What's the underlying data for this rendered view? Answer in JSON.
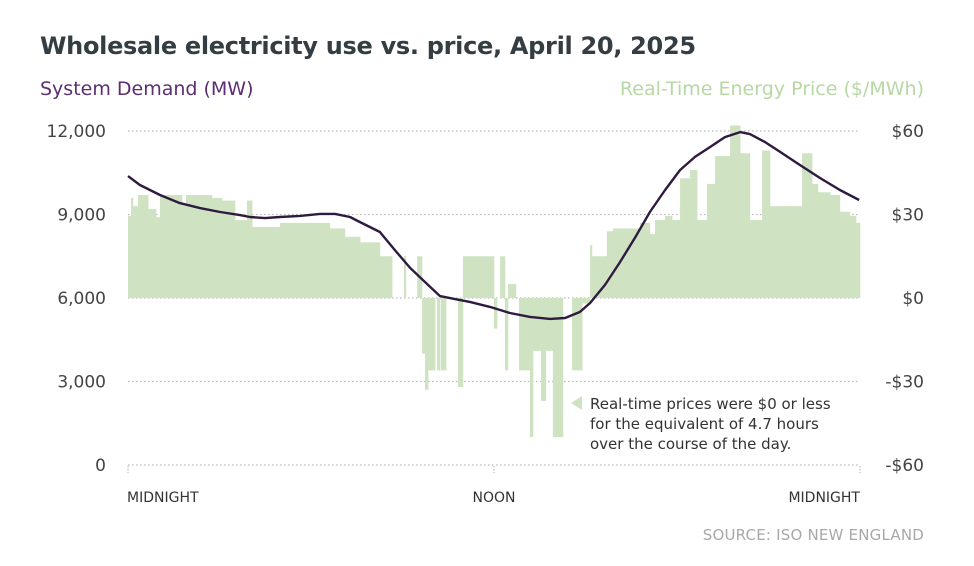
{
  "chart_data": {
    "type": "bar+line",
    "title": "Wholesale electricity use vs. price, April 20, 2025",
    "left_axis": {
      "label": "System Demand (MW)",
      "ticks": [
        "0",
        "3,000",
        "6,000",
        "9,000",
        "12,000"
      ],
      "range": [
        0,
        12000
      ],
      "color": "#5b2e72"
    },
    "right_axis": {
      "label": "Real-Time Energy Price ($/MWh)",
      "ticks": [
        "-$60",
        "-$30",
        "$0",
        "$30",
        "$60"
      ],
      "range": [
        -60,
        60
      ],
      "color": "#b7d8a4"
    },
    "x_axis": {
      "ticks": [
        "MIDNIGHT",
        "NOON",
        "MIDNIGHT"
      ],
      "range_hours": [
        0,
        24
      ]
    },
    "grid": true,
    "price_series": {
      "color": "#cfe3c2",
      "segments_hours_price": [
        [
          0,
          0.1,
          29.5
        ],
        [
          0.1,
          0.16,
          36
        ],
        [
          0.16,
          0.33,
          33
        ],
        [
          0.33,
          0.66,
          37
        ],
        [
          0.66,
          0.92,
          32
        ],
        [
          0.92,
          1.05,
          29
        ],
        [
          1.05,
          1.77,
          37
        ],
        [
          1.77,
          1.9,
          34
        ],
        [
          1.9,
          2.75,
          37
        ],
        [
          2.75,
          3.08,
          36
        ],
        [
          3.08,
          3.51,
          35
        ],
        [
          3.51,
          3.9,
          28
        ],
        [
          3.9,
          4.07,
          35
        ],
        [
          4.07,
          4.98,
          25.5
        ],
        [
          4.98,
          6.62,
          27
        ],
        [
          6.62,
          7.11,
          25
        ],
        [
          7.11,
          7.61,
          22
        ],
        [
          7.61,
          8.26,
          20
        ],
        [
          8.26,
          8.66,
          15
        ],
        [
          9.05,
          9.11,
          15
        ],
        [
          9.48,
          9.64,
          15
        ],
        [
          9.64,
          9.74,
          -20
        ],
        [
          9.74,
          9.84,
          -33
        ],
        [
          9.84,
          10.07,
          -26
        ],
        [
          10.13,
          10.23,
          -26
        ],
        [
          10.26,
          10.43,
          -26
        ],
        [
          10.82,
          10.98,
          -32
        ],
        [
          10.98,
          12,
          15
        ],
        [
          12,
          12.1,
          -11
        ],
        [
          12.2,
          12.36,
          15
        ],
        [
          12.36,
          12.46,
          -26
        ],
        [
          12.46,
          12.72,
          5
        ],
        [
          12.82,
          13.18,
          -26
        ],
        [
          13.18,
          13.28,
          -50
        ],
        [
          13.28,
          13.54,
          -19
        ],
        [
          13.54,
          13.7,
          -37
        ],
        [
          13.7,
          13.93,
          -19
        ],
        [
          13.93,
          14.26,
          -50
        ],
        [
          14.56,
          14.89,
          -26
        ],
        [
          14.89,
          15.15,
          -2
        ],
        [
          15.15,
          15.21,
          19
        ],
        [
          15.21,
          15.7,
          15
        ],
        [
          15.7,
          15.9,
          24
        ],
        [
          15.9,
          16.79,
          25
        ],
        [
          16.79,
          17.11,
          27
        ],
        [
          17.11,
          17.28,
          23
        ],
        [
          17.28,
          17.61,
          28
        ],
        [
          17.61,
          17.84,
          29.5
        ],
        [
          17.84,
          18.1,
          28
        ],
        [
          18.1,
          18.43,
          43
        ],
        [
          18.43,
          18.66,
          46
        ],
        [
          18.66,
          18.98,
          28
        ],
        [
          18.98,
          19.25,
          41
        ],
        [
          19.25,
          19.74,
          51
        ],
        [
          19.74,
          20.07,
          62
        ],
        [
          20.07,
          20.39,
          52
        ],
        [
          20.39,
          20.79,
          28
        ],
        [
          20.79,
          21.05,
          53
        ],
        [
          21.05,
          22.1,
          33
        ],
        [
          22.1,
          22.43,
          52
        ],
        [
          22.43,
          22.62,
          41
        ],
        [
          22.62,
          23.02,
          38
        ],
        [
          23.02,
          23.34,
          37
        ],
        [
          23.34,
          23.67,
          31
        ],
        [
          23.67,
          23.87,
          29.5
        ],
        [
          23.87,
          24,
          27
        ]
      ]
    },
    "demand_series": {
      "color": "#2e1b3f",
      "hours": [
        0,
        0.39,
        1.05,
        1.7,
        2.36,
        3.02,
        3.67,
        4,
        4.49,
        4.98,
        5.64,
        6.3,
        6.79,
        7.28,
        7.6,
        8.26,
        8.75,
        9.25,
        9.74,
        10.23,
        10.72,
        11.21,
        11.87,
        12.52,
        13.18,
        13.84,
        14.33,
        14.82,
        15.15,
        15.64,
        16.13,
        16.62,
        17.11,
        17.61,
        18.1,
        18.59,
        19.08,
        19.57,
        20.07,
        20.39,
        20.89,
        21.38,
        22.03,
        22.69,
        23.34,
        23.97
      ],
      "mw": [
        10380,
        10060,
        9700,
        9410,
        9230,
        9090,
        8980,
        8910,
        8870,
        8910,
        8950,
        9020,
        9020,
        8910,
        8730,
        8370,
        7720,
        7080,
        6570,
        6070,
        5960,
        5860,
        5680,
        5460,
        5320,
        5250,
        5280,
        5500,
        5820,
        6470,
        7290,
        8160,
        9090,
        9880,
        10600,
        11070,
        11420,
        11780,
        11960,
        11890,
        11600,
        11250,
        10780,
        10310,
        9880,
        9520
      ]
    },
    "annotation": [
      "Real-time prices were $0 or less",
      "for the equivalent of 4.7 hours",
      "over the course of the day."
    ],
    "source": "SOURCE: ISO NEW ENGLAND"
  }
}
